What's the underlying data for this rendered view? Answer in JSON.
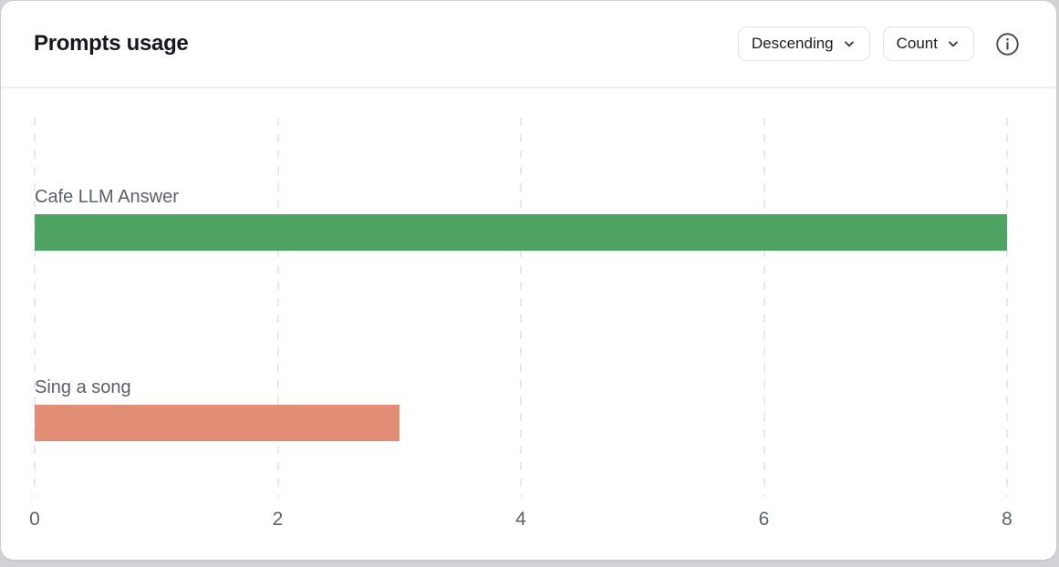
{
  "header": {
    "title": "Prompts usage",
    "controls": {
      "sort_dropdown": {
        "value": "Descending",
        "icon": "chevron-down-icon"
      },
      "metric_dropdown": {
        "value": "Count",
        "icon": "chevron-down-icon"
      },
      "info": {
        "icon": "info-icon"
      }
    }
  },
  "chart_data": {
    "type": "bar",
    "orientation": "horizontal",
    "title": "Prompts usage",
    "categories": [
      "Cafe LLM Answer",
      "Sing a song"
    ],
    "values": [
      8,
      3
    ],
    "colors": [
      "#4fa464",
      "#e28e76"
    ],
    "xlim": [
      0,
      8
    ],
    "xticks": [
      0,
      2,
      4,
      6,
      8
    ],
    "xlabel": "",
    "ylabel": "",
    "grid": "vertical-dashed",
    "legend": "none"
  }
}
